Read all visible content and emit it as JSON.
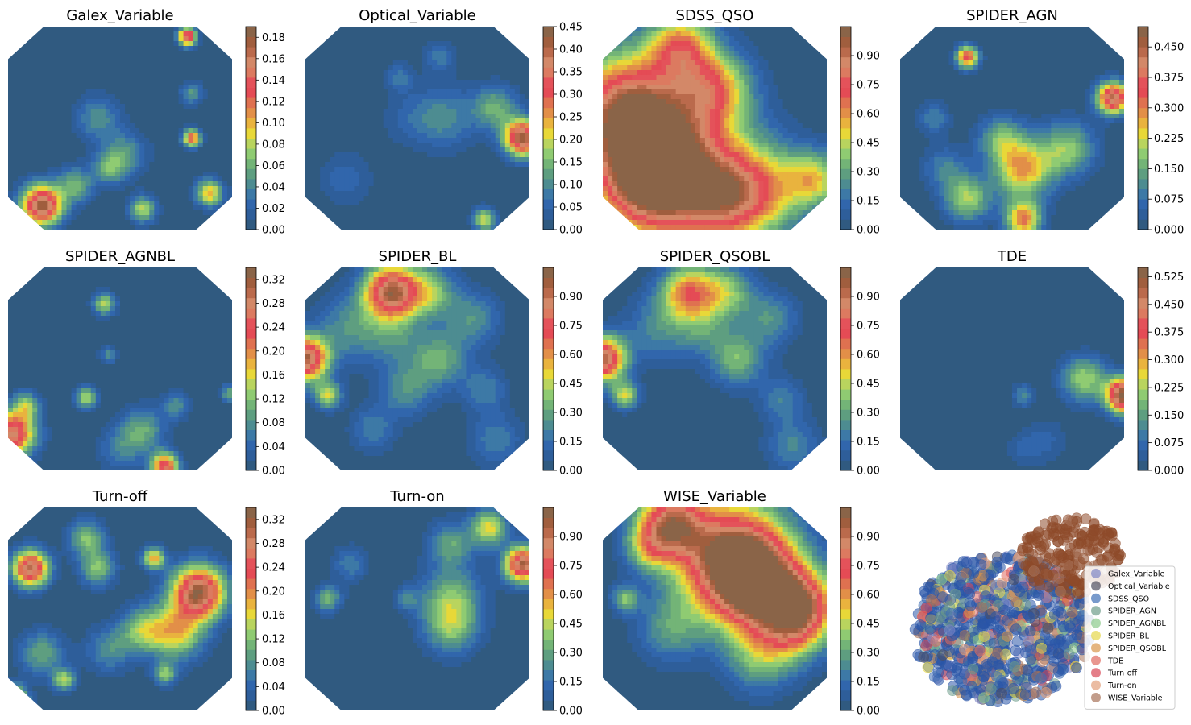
{
  "chart_data": {
    "type": "heatmap",
    "description_note": "",
    "panels": [
      {
        "title": "Galex_Variable",
        "ticks": [
          "0.00",
          "0.02",
          "0.04",
          "0.06",
          "0.08",
          "0.10",
          "0.12",
          "0.14",
          "0.16",
          "0.18"
        ],
        "vmax": 0.19,
        "hotspots": [
          [
            0.15,
            0.88,
            0.18,
            0.09
          ],
          [
            0.3,
            0.78,
            0.06,
            0.08
          ],
          [
            0.45,
            0.7,
            0.05,
            0.07
          ],
          [
            0.6,
            0.9,
            0.08,
            0.06
          ],
          [
            0.82,
            0.55,
            0.13,
            0.04
          ],
          [
            0.9,
            0.82,
            0.1,
            0.06
          ],
          [
            0.82,
            0.33,
            0.05,
            0.05
          ],
          [
            0.8,
            0.05,
            0.16,
            0.04
          ],
          [
            0.52,
            0.63,
            0.05,
            0.1
          ],
          [
            0.4,
            0.45,
            0.045,
            0.1
          ]
        ]
      },
      {
        "title": "Optical_Variable",
        "ticks": [
          "0.00",
          "0.05",
          "0.10",
          "0.15",
          "0.20",
          "0.25",
          "0.30",
          "0.35",
          "0.40",
          "0.45"
        ],
        "vmax": 0.45,
        "hotspots": [
          [
            0.97,
            0.55,
            0.42,
            0.08
          ],
          [
            0.85,
            0.4,
            0.14,
            0.1
          ],
          [
            0.62,
            0.45,
            0.1,
            0.14
          ],
          [
            0.6,
            0.15,
            0.08,
            0.07
          ],
          [
            0.45,
            0.45,
            0.04,
            0.12
          ],
          [
            0.8,
            0.95,
            0.2,
            0.05
          ],
          [
            0.42,
            0.25,
            0.08,
            0.06
          ],
          [
            0.18,
            0.75,
            0.06,
            0.12
          ]
        ]
      },
      {
        "title": "SDSS_QSO",
        "ticks": [
          "0.00",
          "0.15",
          "0.30",
          "0.45",
          "0.60",
          "0.75",
          "0.90"
        ],
        "vmax": 1.05,
        "hotspots": [
          [
            0.12,
            0.45,
            1.0,
            0.28
          ],
          [
            0.35,
            0.7,
            0.68,
            0.3
          ],
          [
            0.55,
            0.85,
            0.55,
            0.2
          ],
          [
            0.5,
            0.3,
            0.5,
            0.16
          ],
          [
            0.75,
            0.8,
            0.35,
            0.2
          ],
          [
            0.95,
            0.75,
            0.42,
            0.12
          ],
          [
            0.35,
            0.1,
            0.55,
            0.14
          ],
          [
            0.2,
            0.8,
            0.6,
            0.2
          ]
        ]
      },
      {
        "title": "SPIDER_AGN",
        "ticks": [
          "0.000",
          "0.075",
          "0.150",
          "0.225",
          "0.300",
          "0.375",
          "0.450"
        ],
        "vmax": 0.5,
        "hotspots": [
          [
            0.55,
            0.7,
            0.28,
            0.13
          ],
          [
            0.3,
            0.85,
            0.2,
            0.1
          ],
          [
            0.75,
            0.6,
            0.18,
            0.12
          ],
          [
            0.45,
            0.55,
            0.15,
            0.1
          ],
          [
            0.95,
            0.35,
            0.45,
            0.07
          ],
          [
            0.15,
            0.45,
            0.1,
            0.07
          ],
          [
            0.55,
            0.95,
            0.3,
            0.08
          ],
          [
            0.3,
            0.15,
            0.35,
            0.05
          ],
          [
            0.2,
            0.7,
            0.1,
            0.1
          ]
        ]
      },
      {
        "title": "SPIDER_AGNBL",
        "ticks": [
          "0.00",
          "0.04",
          "0.08",
          "0.12",
          "0.16",
          "0.20",
          "0.24",
          "0.28",
          "0.32"
        ],
        "vmax": 0.34,
        "hotspots": [
          [
            0.02,
            0.82,
            0.28,
            0.1
          ],
          [
            0.08,
            0.68,
            0.12,
            0.06
          ],
          [
            0.35,
            0.64,
            0.14,
            0.05
          ],
          [
            0.45,
            0.43,
            0.08,
            0.04
          ],
          [
            0.43,
            0.18,
            0.14,
            0.05
          ],
          [
            0.7,
            0.98,
            0.26,
            0.06
          ],
          [
            0.6,
            0.8,
            0.1,
            0.1
          ],
          [
            0.75,
            0.68,
            0.08,
            0.06
          ],
          [
            0.5,
            0.9,
            0.06,
            0.1
          ],
          [
            0.99,
            0.62,
            0.1,
            0.04
          ]
        ]
      },
      {
        "title": "SPIDER_BL",
        "ticks": [
          "0.00",
          "0.15",
          "0.30",
          "0.45",
          "0.60",
          "0.75",
          "0.90"
        ],
        "vmax": 1.05,
        "hotspots": [
          [
            0.38,
            0.12,
            0.92,
            0.12
          ],
          [
            0.0,
            0.45,
            0.95,
            0.1
          ],
          [
            0.1,
            0.63,
            0.45,
            0.06
          ],
          [
            0.55,
            0.12,
            0.38,
            0.12
          ],
          [
            0.6,
            0.45,
            0.33,
            0.12
          ],
          [
            0.75,
            0.25,
            0.25,
            0.12
          ],
          [
            0.4,
            0.35,
            0.2,
            0.12
          ],
          [
            0.2,
            0.3,
            0.25,
            0.15
          ],
          [
            0.45,
            0.6,
            0.25,
            0.12
          ],
          [
            0.8,
            0.6,
            0.2,
            0.1
          ],
          [
            0.85,
            0.85,
            0.2,
            0.12
          ],
          [
            0.3,
            0.8,
            0.2,
            0.1
          ]
        ]
      },
      {
        "title": "SPIDER_QSOBL",
        "ticks": [
          "0.00",
          "0.15",
          "0.30",
          "0.45",
          "0.60",
          "0.75",
          "0.90"
        ],
        "vmax": 1.05,
        "hotspots": [
          [
            0.38,
            0.12,
            0.6,
            0.12
          ],
          [
            0.0,
            0.45,
            0.95,
            0.1
          ],
          [
            0.1,
            0.63,
            0.45,
            0.06
          ],
          [
            0.55,
            0.12,
            0.38,
            0.12
          ],
          [
            0.6,
            0.45,
            0.35,
            0.12
          ],
          [
            0.75,
            0.25,
            0.25,
            0.12
          ],
          [
            0.45,
            0.3,
            0.2,
            0.12
          ],
          [
            0.25,
            0.3,
            0.22,
            0.15
          ],
          [
            0.8,
            0.65,
            0.2,
            0.1
          ],
          [
            0.85,
            0.88,
            0.22,
            0.12
          ]
        ]
      },
      {
        "title": "TDE",
        "ticks": [
          "0.000",
          "0.075",
          "0.150",
          "0.225",
          "0.300",
          "0.375",
          "0.450",
          "0.525"
        ],
        "vmax": 0.55,
        "hotspots": [
          [
            1.0,
            0.63,
            0.55,
            0.08
          ],
          [
            0.82,
            0.55,
            0.22,
            0.1
          ],
          [
            0.55,
            0.63,
            0.12,
            0.05
          ],
          [
            0.65,
            0.85,
            0.06,
            0.1
          ],
          [
            0.55,
            0.9,
            0.05,
            0.08
          ]
        ]
      },
      {
        "title": "Turn-off",
        "ticks": [
          "0.00",
          "0.04",
          "0.08",
          "0.12",
          "0.16",
          "0.20",
          "0.24",
          "0.28",
          "0.32"
        ],
        "vmax": 0.34,
        "hotspots": [
          [
            0.85,
            0.42,
            0.32,
            0.12
          ],
          [
            0.1,
            0.3,
            0.3,
            0.08
          ],
          [
            0.65,
            0.25,
            0.18,
            0.05
          ],
          [
            0.4,
            0.3,
            0.12,
            0.08
          ],
          [
            0.6,
            0.6,
            0.12,
            0.1
          ],
          [
            0.75,
            0.62,
            0.16,
            0.12
          ],
          [
            0.7,
            0.82,
            0.12,
            0.05
          ],
          [
            0.45,
            0.7,
            0.08,
            0.1
          ],
          [
            0.02,
            0.95,
            0.28,
            0.06
          ],
          [
            0.25,
            0.85,
            0.14,
            0.05
          ],
          [
            0.35,
            0.15,
            0.12,
            0.08
          ],
          [
            0.15,
            0.72,
            0.1,
            0.1
          ]
        ]
      },
      {
        "title": "Turn-on",
        "ticks": [
          "0.00",
          "0.15",
          "0.30",
          "0.45",
          "0.60",
          "0.75",
          "0.90"
        ],
        "vmax": 1.05,
        "hotspots": [
          [
            0.97,
            0.28,
            0.95,
            0.08
          ],
          [
            0.82,
            0.1,
            0.5,
            0.08
          ],
          [
            0.65,
            0.45,
            0.35,
            0.14
          ],
          [
            0.65,
            0.18,
            0.3,
            0.1
          ],
          [
            0.65,
            0.6,
            0.3,
            0.12
          ],
          [
            0.1,
            0.45,
            0.35,
            0.06
          ],
          [
            0.45,
            0.45,
            0.2,
            0.05
          ],
          [
            0.2,
            0.28,
            0.2,
            0.08
          ]
        ]
      },
      {
        "title": "WISE_Variable",
        "ticks": [
          "0.00",
          "0.15",
          "0.30",
          "0.45",
          "0.60",
          "0.75",
          "0.90"
        ],
        "vmax": 1.05,
        "hotspots": [
          [
            0.58,
            0.25,
            1.0,
            0.25
          ],
          [
            0.7,
            0.4,
            0.75,
            0.2
          ],
          [
            0.3,
            0.08,
            0.8,
            0.15
          ],
          [
            0.9,
            0.48,
            0.6,
            0.15
          ],
          [
            0.85,
            0.6,
            0.4,
            0.15
          ],
          [
            0.1,
            0.45,
            0.35,
            0.06
          ],
          [
            0.2,
            0.2,
            0.3,
            0.1
          ],
          [
            0.7,
            0.75,
            0.3,
            0.15
          ],
          [
            0.3,
            0.6,
            0.25,
            0.15
          ]
        ]
      }
    ],
    "scatter": {
      "type": "scatter",
      "legend_placement": "lower-right",
      "legend": [
        {
          "name": "Galex_Variable",
          "color": "#7F86C6"
        },
        {
          "name": "Optical_Variable",
          "color": "#4E4E5F"
        },
        {
          "name": "SDSS_QSO",
          "color": "#3F6FB5"
        },
        {
          "name": "SPIDER_AGN",
          "color": "#6E9C8A"
        },
        {
          "name": "SPIDER_AGNBL",
          "color": "#8CCB8A"
        },
        {
          "name": "SPIDER_BL",
          "color": "#E5D74A"
        },
        {
          "name": "SPIDER_QSOBL",
          "color": "#D9954A"
        },
        {
          "name": "TDE",
          "color": "#E06A5F"
        },
        {
          "name": "Turn-off",
          "color": "#D84756"
        },
        {
          "name": "Turn-on",
          "color": "#E3A07A"
        },
        {
          "name": "WISE_Variable",
          "color": "#A8735A"
        }
      ]
    },
    "colormap": [
      "#305A80",
      "#2E5E9A",
      "#3166AC",
      "#3D79A6",
      "#4D8C91",
      "#5E9E80",
      "#73B477",
      "#8FCB72",
      "#B9D45E",
      "#E8D838",
      "#E9B33E",
      "#E28F48",
      "#DF7150",
      "#E44B55",
      "#E4525A",
      "#DC7A60",
      "#D38868",
      "#BA6A4C",
      "#A05E3E",
      "#8A6448"
    ]
  }
}
